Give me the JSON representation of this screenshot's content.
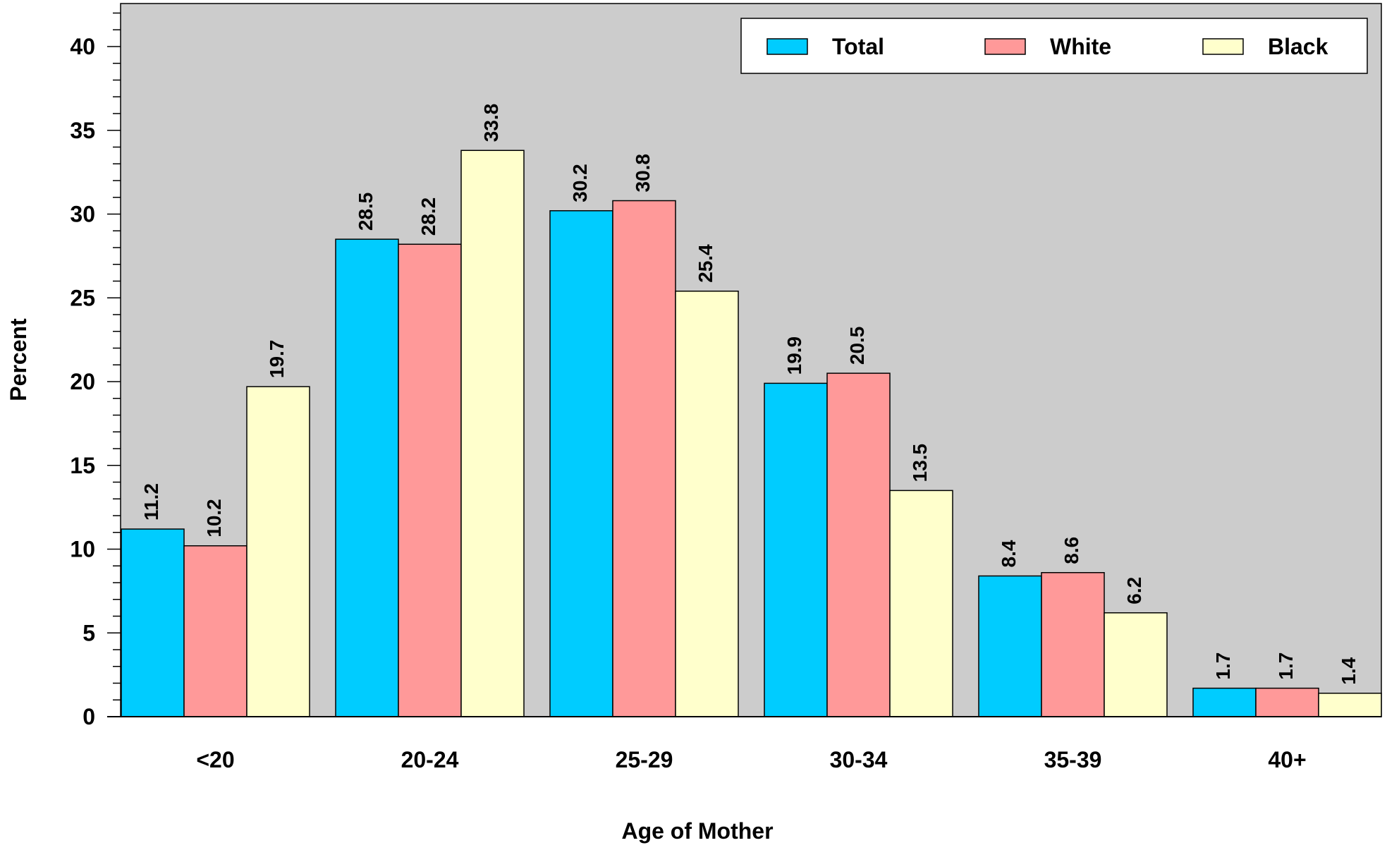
{
  "chart_data": {
    "type": "bar",
    "title": "",
    "xlabel": "Age of Mother",
    "ylabel": "Percent",
    "categories": [
      "<20",
      "20-24",
      "25-29",
      "30-34",
      "35-39",
      "40+"
    ],
    "series": [
      {
        "name": "Total",
        "color": "#00ccff",
        "values": [
          11.2,
          28.5,
          30.2,
          19.9,
          8.4,
          1.7
        ]
      },
      {
        "name": "White",
        "color": "#ff9999",
        "values": [
          10.2,
          28.2,
          30.8,
          20.5,
          8.6,
          1.7
        ]
      },
      {
        "name": "Black",
        "color": "#ffffcc",
        "values": [
          19.7,
          33.8,
          25.4,
          13.5,
          6.2,
          1.4
        ]
      }
    ],
    "ylim": [
      0,
      42.5
    ],
    "yticks": [
      0,
      5,
      10,
      15,
      20,
      25,
      30,
      35,
      40
    ],
    "grid": false,
    "legend_position": "top-right",
    "plot_background": "#cccccc"
  }
}
